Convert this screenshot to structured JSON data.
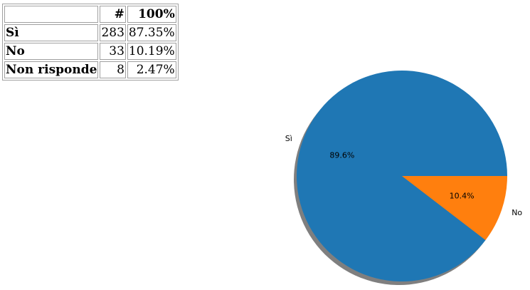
{
  "table": {
    "headers": [
      "",
      "#",
      "100%"
    ],
    "rows": [
      {
        "label": "Sì",
        "count": "283",
        "percent": "87.35%"
      },
      {
        "label": "No",
        "count": "33",
        "percent": "10.19%"
      },
      {
        "label": "Non risponde",
        "count": "8",
        "percent": "2.47%"
      }
    ]
  },
  "chart_data": {
    "type": "pie",
    "categories": [
      "Sì",
      "No"
    ],
    "values": [
      89.6,
      10.4
    ],
    "labels": [
      "89.6%",
      "10.4%"
    ],
    "colors": [
      "#1f77b4",
      "#ff7f0e"
    ],
    "shadow": true,
    "start_angle_deg": 0,
    "direction": "counterclockwise",
    "title": ""
  }
}
